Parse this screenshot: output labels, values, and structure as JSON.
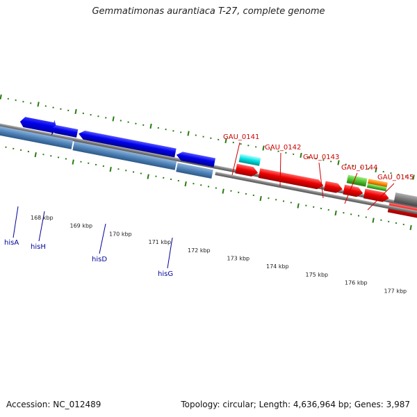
{
  "title": "Gemmatimonas aurantiaca T-27, complete genome",
  "footer": {
    "accession": "Accession: NC_012489",
    "topology": "Topology: circular; Length: 4,636,964 bp; Genes: 3,987"
  },
  "colors": {
    "backbone": "#888888",
    "forward_gene": "#ff0000",
    "reverse_gene": "#0000ff",
    "rna_gene": "#00e5e5",
    "label_forward": "#cc0000",
    "label_reverse": "#000099",
    "tick": "#2a7a12"
  },
  "ticks": [
    {
      "label": "168 kbp"
    },
    {
      "label": "169 kbp"
    },
    {
      "label": "170 kbp"
    },
    {
      "label": "171 kbp"
    },
    {
      "label": "172 kbp"
    },
    {
      "label": "173 kbp"
    },
    {
      "label": "174 kbp"
    },
    {
      "label": "175 kbp"
    },
    {
      "label": "176 kbp"
    },
    {
      "label": "177 kbp"
    }
  ],
  "genes": {
    "reverse": [
      {
        "label": "hisA"
      },
      {
        "label": "hisH"
      },
      {
        "label": "hisD"
      },
      {
        "label": "hisG"
      }
    ],
    "forward": [
      {
        "label": "GAU_0141"
      },
      {
        "label": "GAU_0142"
      },
      {
        "label": "GAU_0143"
      },
      {
        "label": "GAU_0144"
      },
      {
        "label": "GAU_0145"
      }
    ]
  }
}
